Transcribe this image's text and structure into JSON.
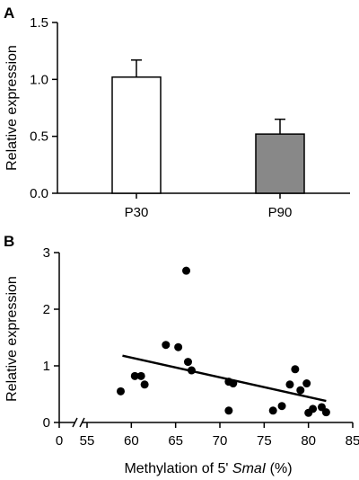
{
  "chart_data": [
    {
      "panel_label": "A",
      "type": "bar",
      "categories": [
        "P30",
        "P90"
      ],
      "values": [
        1.02,
        0.52
      ],
      "errors": [
        0.15,
        0.13
      ],
      "bar_colors": [
        "#ffffff",
        "#888888"
      ],
      "ylabel": "Relative expression",
      "ylim": [
        0,
        1.5
      ],
      "yticks": [
        0.0,
        0.5,
        1.0,
        1.5
      ],
      "ytick_labels": [
        "0.0",
        "0.5",
        "1.0",
        "1.5"
      ],
      "grid": false
    },
    {
      "panel_label": "B",
      "type": "scatter",
      "xlabel_prefix": "Methylation of 5' ",
      "xlabel_italic": "SmaI",
      "xlabel_suffix": " (%)",
      "ylabel": "Relative expression",
      "xlim": [
        55,
        85
      ],
      "ylim": [
        0,
        3
      ],
      "x_axis_break": true,
      "xticks": [
        0,
        55,
        60,
        65,
        70,
        75,
        80,
        85
      ],
      "xtick_labels": [
        "0",
        "55",
        "60",
        "65",
        "70",
        "75",
        "80",
        "85"
      ],
      "yticks": [
        0,
        1,
        2,
        3
      ],
      "ytick_labels": [
        "0",
        "1",
        "2",
        "3"
      ],
      "points": [
        {
          "x": 58.8,
          "y": 0.55
        },
        {
          "x": 60.4,
          "y": 0.82
        },
        {
          "x": 61.1,
          "y": 0.82
        },
        {
          "x": 61.5,
          "y": 0.67
        },
        {
          "x": 63.9,
          "y": 1.37
        },
        {
          "x": 65.3,
          "y": 1.33
        },
        {
          "x": 66.2,
          "y": 2.68
        },
        {
          "x": 66.4,
          "y": 1.07
        },
        {
          "x": 66.8,
          "y": 0.92
        },
        {
          "x": 71.0,
          "y": 0.72
        },
        {
          "x": 71.0,
          "y": 0.21
        },
        {
          "x": 71.5,
          "y": 0.69
        },
        {
          "x": 76.0,
          "y": 0.21
        },
        {
          "x": 77.0,
          "y": 0.29
        },
        {
          "x": 77.9,
          "y": 0.67
        },
        {
          "x": 78.5,
          "y": 0.94
        },
        {
          "x": 79.1,
          "y": 0.57
        },
        {
          "x": 79.8,
          "y": 0.69
        },
        {
          "x": 80.0,
          "y": 0.17
        },
        {
          "x": 80.5,
          "y": 0.24
        },
        {
          "x": 81.5,
          "y": 0.27
        },
        {
          "x": 82.0,
          "y": 0.18
        }
      ],
      "trendline": {
        "x": [
          59,
          82
        ],
        "y": [
          1.18,
          0.38
        ]
      },
      "grid": false
    }
  ]
}
